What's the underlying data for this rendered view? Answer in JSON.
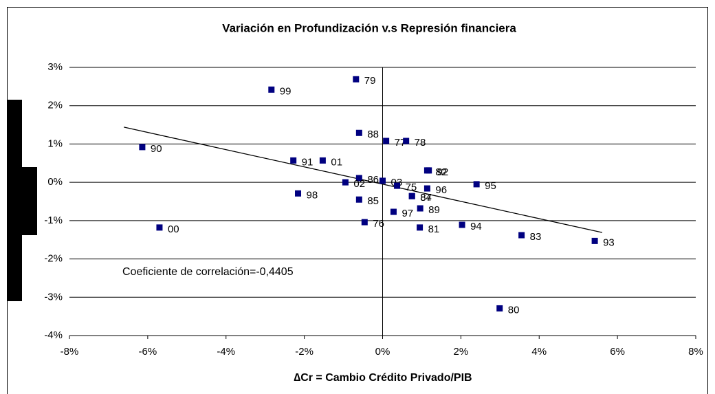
{
  "chart_data": {
    "type": "scatter",
    "title": "Variación en Profundización v.s Represión financiera",
    "x_label": "∆Cr = Cambio Crédito Privado/PIB",
    "annotation": "Coeficiente de correlación=-0,4405",
    "color": "#000080",
    "point_labels": [
      "99",
      "79",
      "90",
      "91",
      "01",
      "88",
      "77",
      "78",
      "82",
      "92",
      "86",
      "03",
      "75",
      "84",
      "02",
      "98",
      "85",
      "76",
      "87",
      "89",
      "96",
      "97",
      "81",
      "94",
      "95",
      "00",
      "83",
      "93",
      "80"
    ],
    "x": [
      -2.84,
      -0.68,
      -6.14,
      -2.28,
      -1.53,
      -0.6,
      0.09,
      0.6,
      1.14,
      1.18,
      -0.6,
      0.0,
      0.37,
      0.75,
      -0.95,
      -2.16,
      -0.6,
      -0.46,
      0.75,
      0.96,
      1.14,
      0.28,
      0.95,
      2.03,
      2.4,
      -5.7,
      3.55,
      5.42,
      2.99
    ],
    "y": [
      2.42,
      2.69,
      0.92,
      0.57,
      0.57,
      1.29,
      1.08,
      1.08,
      0.31,
      0.31,
      0.11,
      0.04,
      -0.09,
      -0.36,
      0.0,
      -0.29,
      -0.45,
      -1.04,
      -0.36,
      -0.68,
      -0.16,
      -0.77,
      -1.18,
      -1.11,
      -0.05,
      -1.18,
      -1.38,
      -1.53,
      -3.29
    ],
    "trend_line": {
      "x": [
        -6.61,
        5.61
      ],
      "y": [
        1.44,
        -1.31
      ]
    },
    "xlim": [
      -8,
      8
    ],
    "ylim": [
      -4,
      3
    ],
    "xticks": [
      {
        "value": -8,
        "label": "-8%"
      },
      {
        "value": -6,
        "label": "-6%"
      },
      {
        "value": -4,
        "label": "-4%"
      },
      {
        "value": -2,
        "label": "-2%"
      },
      {
        "value": 0,
        "label": "0%"
      },
      {
        "value": 2,
        "label": "2%"
      },
      {
        "value": 4,
        "label": "4%"
      },
      {
        "value": 6,
        "label": "6%"
      },
      {
        "value": 8,
        "label": "8%"
      }
    ],
    "yticks": [
      {
        "value": -4,
        "label": "-4%"
      },
      {
        "value": -3,
        "label": "-3%"
      },
      {
        "value": -2,
        "label": "-2%"
      },
      {
        "value": -1,
        "label": "-1%"
      },
      {
        "value": 0,
        "label": "0%"
      },
      {
        "value": 1,
        "label": "1%"
      },
      {
        "value": 2,
        "label": "2%"
      },
      {
        "value": 3,
        "label": "3%"
      }
    ],
    "grid": true
  }
}
